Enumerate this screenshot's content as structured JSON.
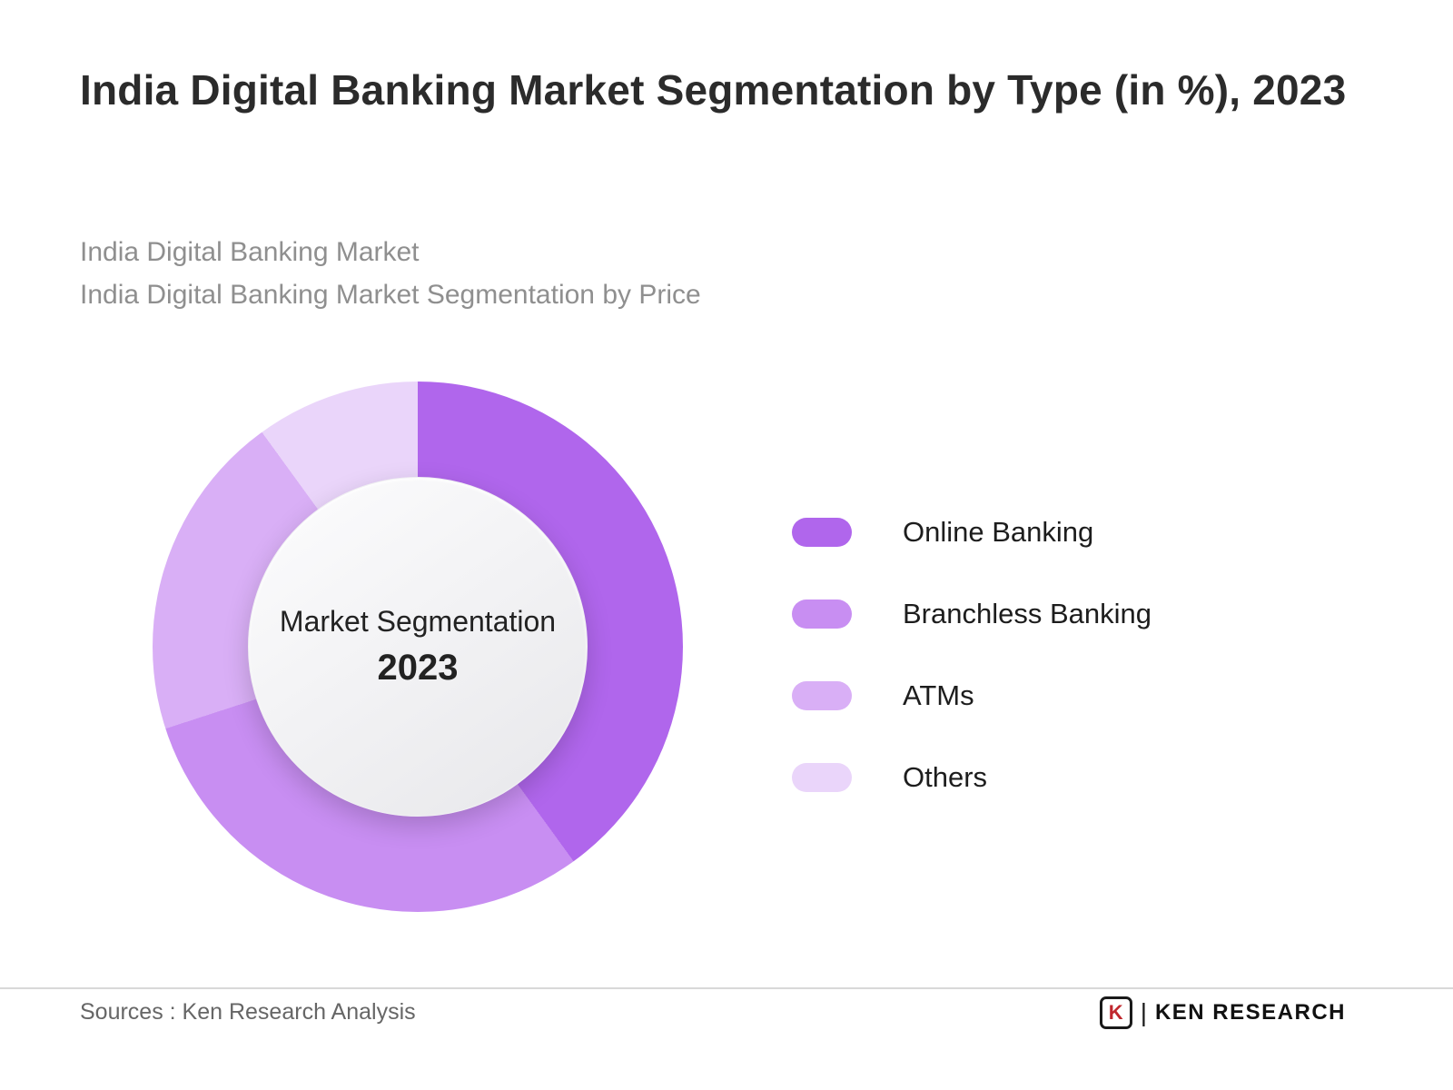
{
  "header": {
    "title": "India Digital Banking Market Segmentation by Type (in %), 2023",
    "subtitle_line1": "India Digital Banking Market",
    "subtitle_line2": "India Digital Banking Market Segmentation by Price"
  },
  "chart_data": {
    "type": "pie",
    "donut": true,
    "title": "India Digital Banking Market Segmentation by Type (in %), 2023",
    "center_label": "Market Segmentation",
    "center_year": "2023",
    "categories": [
      "Online Banking",
      "Branchless Banking",
      "ATMs",
      "Others"
    ],
    "values": [
      40,
      30,
      20,
      10
    ],
    "unit": "%",
    "colors": [
      "#b066ec",
      "#c88ef2",
      "#d9aff6",
      "#ead5fa"
    ],
    "start_angle_deg": 0,
    "direction": "clockwise",
    "legend_position": "right",
    "grid": false
  },
  "footer": {
    "source": "Sources : Ken Research Analysis",
    "logo_mark": "K",
    "logo_separator": "|",
    "logo_text": "KEN RESEARCH"
  }
}
